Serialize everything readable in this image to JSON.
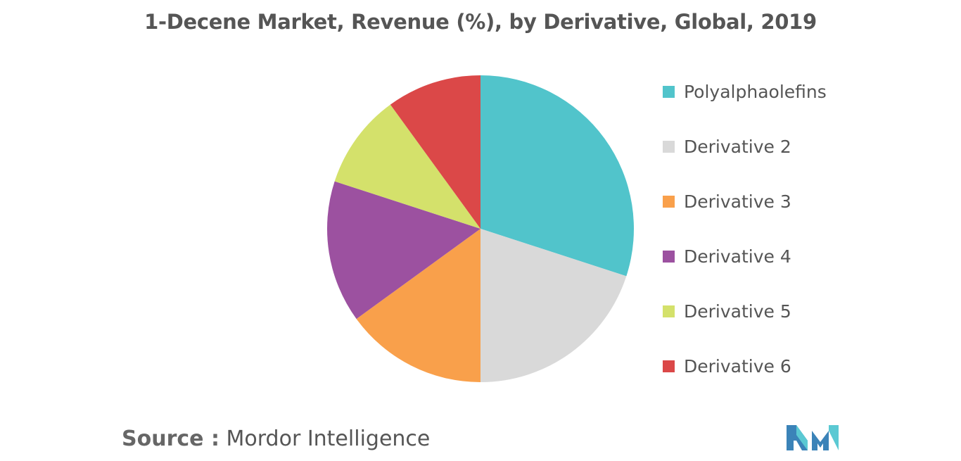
{
  "chart_data": {
    "type": "pie",
    "title": "1-Decene Market, Revenue (%), by Derivative, Global, 2019",
    "categories": [
      "Polyalphaolefins",
      "Derivative 2",
      "Derivative 3",
      "Derivative 4",
      "Derivative 5",
      "Derivative 6"
    ],
    "values": [
      30,
      20,
      15,
      15,
      10,
      10
    ],
    "colors": [
      "#51C4CB",
      "#D9D9D9",
      "#F9A04B",
      "#9C51A0",
      "#D4E16B",
      "#DB4848"
    ],
    "legend_position": "right"
  },
  "source": {
    "label": "Source :",
    "text": "Mordor Intelligence"
  },
  "logo": {
    "icon": "mordor-intelligence-logo",
    "colors": [
      "#3B83B8",
      "#5BC9D3"
    ]
  }
}
